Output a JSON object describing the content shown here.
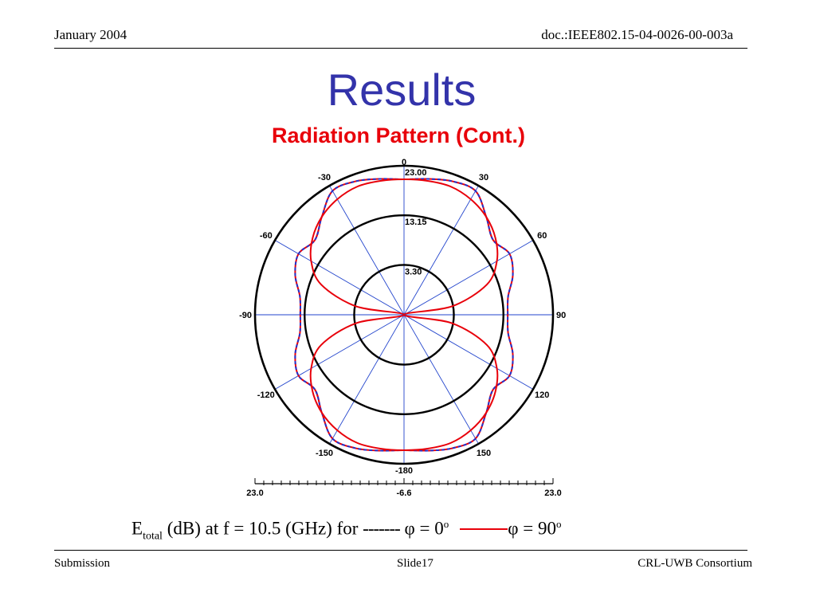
{
  "header": {
    "date": "January 2004",
    "doc_id": "doc.:IEEE802.15-04-0026-00-003a"
  },
  "title": "Results",
  "subtitle": "Radiation Pattern (Cont.)",
  "caption": {
    "e_main": "E",
    "e_sub": "total",
    "text": " (dB) at f = 10.5 (GHz) for ",
    "dash_sample": "-------",
    "series1": " φ = 0",
    "series2": "φ = 90",
    "degree_sup": "o"
  },
  "footer": {
    "left": "Submission",
    "center": "Slide17",
    "right": "CRL-UWB Consortium"
  },
  "colors": {
    "title": "#3333aa",
    "subtitle": "#e8000a",
    "series_phi0": "#2233cc",
    "series_phi90": "#e8000a",
    "axes": "#2244cc"
  },
  "chart_data": {
    "type": "polar",
    "angle_unit": "degrees",
    "angle_ticks": [
      0,
      30,
      60,
      90,
      120,
      150,
      -180,
      -150,
      -120,
      -90,
      -60,
      -30
    ],
    "radial_min": -6.6,
    "radial_max": 23.0,
    "ring_labels": [
      "23.00",
      "13.15",
      "3.30"
    ],
    "ring_values": [
      23.0,
      13.15,
      3.3
    ],
    "scale_bar_labels": [
      "23.0",
      "-6.6",
      "23.0"
    ],
    "series": [
      {
        "name": "φ = 0",
        "style": "dashed",
        "theta": [
          0,
          10,
          20,
          30,
          40,
          50,
          60,
          70,
          80,
          90,
          100,
          110,
          120,
          130,
          140,
          150,
          160,
          170,
          180
        ],
        "r_db": [
          20.3,
          20.8,
          21.6,
          21.8,
          18.8,
          16.5,
          17.6,
          16.4,
          14.4,
          14.0,
          14.4,
          16.4,
          17.6,
          16.5,
          18.8,
          21.8,
          21.6,
          20.8,
          20.3
        ]
      },
      {
        "name": "φ = 90",
        "style": "solid",
        "theta": [
          0,
          10,
          20,
          30,
          40,
          50,
          60,
          70,
          80,
          90,
          100,
          110,
          120,
          130,
          140,
          150,
          160,
          170,
          180
        ],
        "r_db": [
          20.3,
          20.4,
          20.5,
          19.9,
          18.8,
          17.1,
          14.7,
          10.9,
          3.1,
          -6.6,
          3.1,
          10.9,
          14.7,
          17.1,
          18.8,
          19.9,
          20.5,
          20.4,
          20.3
        ]
      }
    ]
  }
}
